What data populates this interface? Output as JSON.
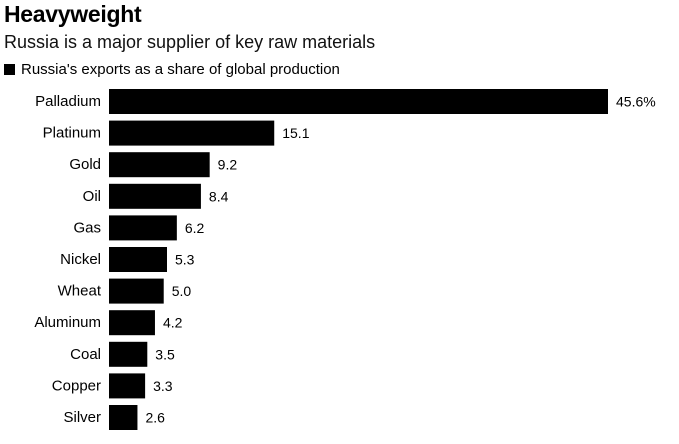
{
  "chart_data": {
    "type": "bar",
    "orientation": "horizontal",
    "title": "Heavyweight",
    "subtitle": "Russia is a major supplier of key raw materials",
    "legend": [
      {
        "name": "Russia's exports as a share of global production",
        "color": "#000000"
      }
    ],
    "legend_placement": "top-left",
    "categories": [
      "Palladium",
      "Platinum",
      "Gold",
      "Oil",
      "Gas",
      "Nickel",
      "Wheat",
      "Aluminum",
      "Coal",
      "Copper",
      "Silver"
    ],
    "values": [
      45.6,
      15.1,
      9.2,
      8.4,
      6.2,
      5.3,
      5.0,
      4.2,
      3.5,
      3.3,
      2.6
    ],
    "value_labels": [
      "45.6%",
      "15.1",
      "9.2",
      "8.4",
      "6.2",
      "5.3",
      "5.0",
      "4.2",
      "3.5",
      "3.3",
      "2.6"
    ],
    "xlim": [
      0,
      45.6
    ],
    "grid": false,
    "bar_color": "#000000"
  }
}
